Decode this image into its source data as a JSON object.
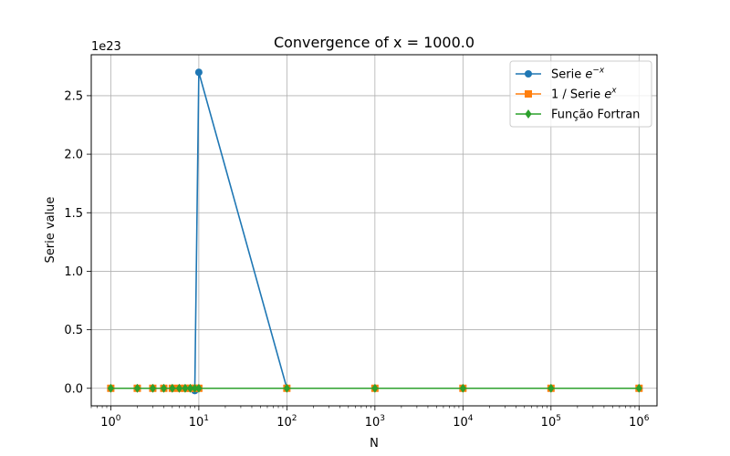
{
  "chart_data": {
    "type": "line",
    "title": "Convergence of x = 1000.0",
    "xlabel": "N",
    "ylabel": "Serie value",
    "y_offset_text": "1e23",
    "xscale": "log",
    "xlim": [
      0.6,
      1600000
    ],
    "ylim": [
      -0.15,
      2.85
    ],
    "y_multiplier": 1e+23,
    "x_ticks": [
      {
        "value": 1,
        "base": "10",
        "exp": "0"
      },
      {
        "value": 10,
        "base": "10",
        "exp": "1"
      },
      {
        "value": 100,
        "base": "10",
        "exp": "2"
      },
      {
        "value": 1000,
        "base": "10",
        "exp": "3"
      },
      {
        "value": 10000,
        "base": "10",
        "exp": "4"
      },
      {
        "value": 100000,
        "base": "10",
        "exp": "5"
      },
      {
        "value": 1000000,
        "base": "10",
        "exp": "6"
      }
    ],
    "y_ticks": [
      {
        "value": 0.0,
        "label": "0.0"
      },
      {
        "value": 0.5,
        "label": "0.5"
      },
      {
        "value": 1.0,
        "label": "1.0"
      },
      {
        "value": 1.5,
        "label": "1.5"
      },
      {
        "value": 2.0,
        "label": "2.0"
      },
      {
        "value": 2.5,
        "label": "2.5"
      }
    ],
    "grid": true,
    "legend_position": "top-right",
    "x": [
      1,
      2,
      3,
      4,
      5,
      6,
      7,
      8,
      9,
      10,
      100,
      1000,
      10000,
      100000,
      1000000
    ],
    "series": [
      {
        "name": "Serie e^{-x}",
        "legend_base": "Serie ",
        "legend_sup": "−x",
        "color": "#1f77b4",
        "marker": "circle",
        "values": [
          0,
          0,
          0,
          0,
          0,
          0,
          0,
          0,
          -0.02,
          2.7,
          0,
          0,
          0,
          0,
          0
        ]
      },
      {
        "name": "1 / Serie e^{x}",
        "legend_base": "1 / Serie ",
        "legend_sup": "x",
        "color": "#ff7f0e",
        "marker": "square",
        "values": [
          0,
          0,
          0,
          0,
          0,
          0,
          0,
          0,
          0,
          0,
          0,
          0,
          0,
          0,
          0
        ]
      },
      {
        "name": "Função Fortran",
        "legend_base": "Função Fortran",
        "legend_sup": "",
        "color": "#2ca02c",
        "marker": "diamond",
        "values": [
          0,
          0,
          0,
          0,
          0,
          0,
          0,
          0,
          0,
          0,
          0,
          0,
          0,
          0,
          0
        ]
      }
    ]
  }
}
